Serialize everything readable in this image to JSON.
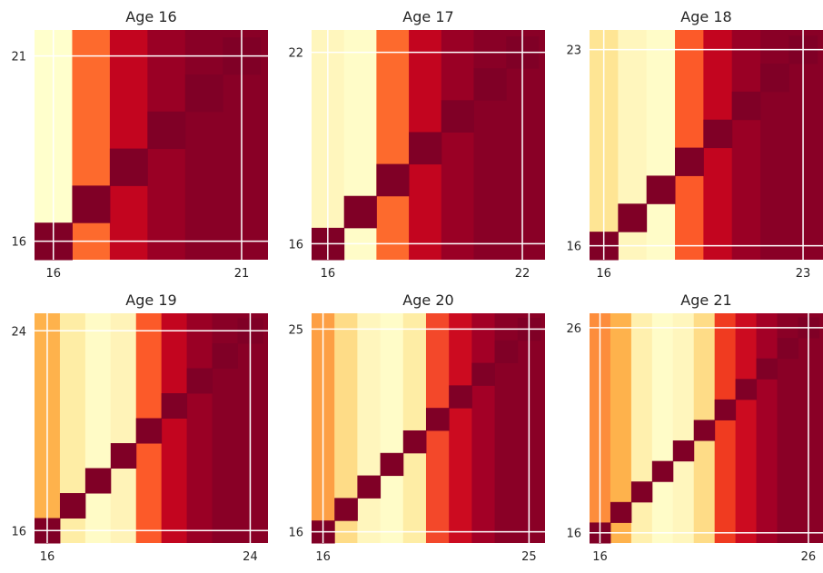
{
  "chart_data": [
    {
      "type": "heatmap",
      "title": "Age 16",
      "start": 16,
      "end": 21,
      "x_ticks": [
        "16",
        "21"
      ],
      "y_ticks": [
        "16",
        "21"
      ],
      "column_bands": [
        "#ffffcc",
        "#fd6a2d",
        "#c3051f",
        "#9a0025",
        "#890026"
      ]
    },
    {
      "type": "heatmap",
      "title": "Age 17",
      "start": 16,
      "end": 22,
      "x_ticks": [
        "16",
        "22"
      ],
      "y_ticks": [
        "16",
        "22"
      ],
      "column_bands": [
        "#fff6bd",
        "#fffcc8",
        "#fd6a2d",
        "#c3051f",
        "#9a0025",
        "#890026"
      ]
    },
    {
      "type": "heatmap",
      "title": "Age 18",
      "start": 16,
      "end": 23,
      "x_ticks": [
        "16",
        "23"
      ],
      "y_ticks": [
        "16",
        "23"
      ],
      "column_bands": [
        "#fee594",
        "#fff6bd",
        "#fffcc8",
        "#fc5a29",
        "#c3051f",
        "#9a0025",
        "#890026"
      ]
    },
    {
      "type": "heatmap",
      "title": "Age 19",
      "start": 16,
      "end": 24,
      "x_ticks": [
        "16",
        "24"
      ],
      "y_ticks": [
        "16",
        "24"
      ],
      "column_bands": [
        "#feb24c",
        "#feeda5",
        "#fffbc6",
        "#fff3b8",
        "#fc5a29",
        "#c3051f",
        "#9a0025",
        "#890026"
      ]
    },
    {
      "type": "heatmap",
      "title": "Age 20",
      "start": 16,
      "end": 25,
      "x_ticks": [
        "16",
        "25"
      ],
      "y_ticks": [
        "16",
        "25"
      ],
      "column_bands": [
        "#fd9f44",
        "#fedc87",
        "#fff6bd",
        "#fffcc8",
        "#feeda5",
        "#f3482a",
        "#cc0b20",
        "#a30026",
        "#8a0026"
      ]
    },
    {
      "type": "heatmap",
      "title": "Age 21",
      "start": 16,
      "end": 26,
      "x_ticks": [
        "16",
        "26"
      ],
      "y_ticks": [
        "16",
        "26"
      ],
      "column_bands": [
        "#fd8d3c",
        "#feb24c",
        "#fff0ae",
        "#fffcc8",
        "#fff6bd",
        "#fedc87",
        "#f03b20",
        "#cc0b20",
        "#a30026",
        "#8a0026"
      ]
    }
  ],
  "diagonal_color": "#800026",
  "grid_color": "#ffffff"
}
